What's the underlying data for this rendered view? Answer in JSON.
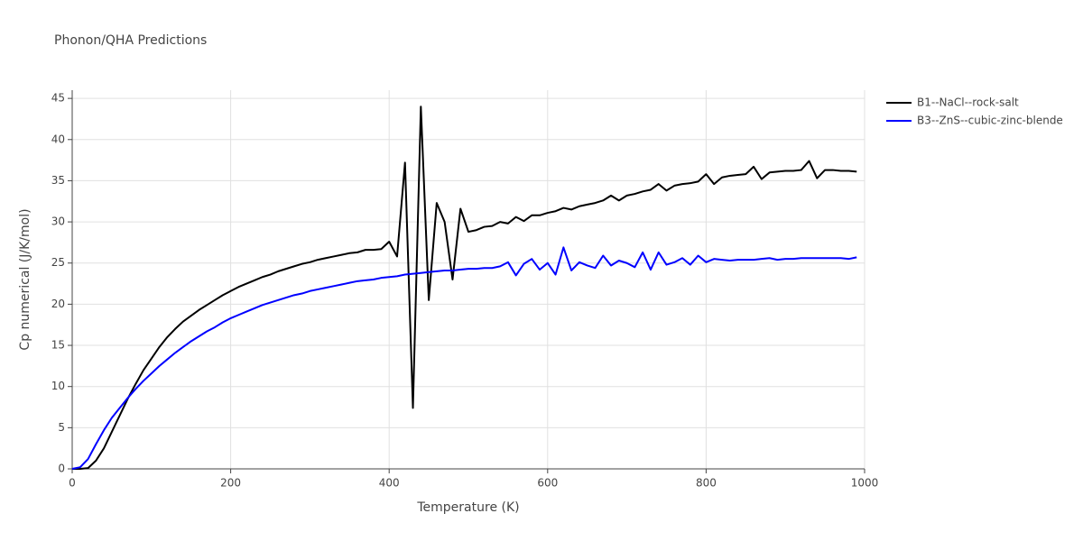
{
  "chart_data": {
    "type": "line",
    "title": "Phonon/QHA Predictions",
    "x_label": "Temperature (K)",
    "y_label": "Cp numerical (J/K/mol)",
    "x": [
      0,
      10,
      20,
      30,
      40,
      50,
      60,
      70,
      80,
      90,
      100,
      110,
      120,
      130,
      140,
      150,
      160,
      170,
      180,
      190,
      200,
      210,
      220,
      230,
      240,
      250,
      260,
      270,
      280,
      290,
      300,
      310,
      320,
      330,
      340,
      350,
      360,
      370,
      380,
      390,
      400,
      410,
      420,
      430,
      440,
      450,
      460,
      470,
      480,
      490,
      500,
      510,
      520,
      530,
      540,
      550,
      560,
      570,
      580,
      590,
      600,
      610,
      620,
      630,
      640,
      650,
      660,
      670,
      680,
      690,
      700,
      710,
      720,
      730,
      740,
      750,
      760,
      770,
      780,
      790,
      800,
      810,
      820,
      830,
      840,
      850,
      860,
      870,
      880,
      890,
      900,
      910,
      920,
      930,
      940,
      950,
      960,
      970,
      980,
      990
    ],
    "series": [
      {
        "name": "B1--NaCl--rock-salt",
        "color": "#000000",
        "values": [
          0,
          0,
          0.1,
          1,
          2.5,
          4.5,
          6.5,
          8.5,
          10.3,
          12,
          13.4,
          14.8,
          16,
          17,
          17.9,
          18.6,
          19.3,
          19.9,
          20.5,
          21.1,
          21.6,
          22.1,
          22.5,
          22.9,
          23.3,
          23.6,
          24,
          24.3,
          24.6,
          24.9,
          25.1,
          25.4,
          25.6,
          25.8,
          26,
          26.2,
          26.3,
          26.6,
          26.6,
          26.7,
          27.6,
          25.8,
          37.2,
          7.4,
          44,
          20.5,
          32.3,
          30,
          23,
          31.6,
          28.8,
          29,
          29.4,
          29.5,
          30,
          29.8,
          30.6,
          30.1,
          30.8,
          30.8,
          31.1,
          31.3,
          31.7,
          31.5,
          31.9,
          32.1,
          32.3,
          32.6,
          33.2,
          32.6,
          33.2,
          33.4,
          33.7,
          33.9,
          34.6,
          33.8,
          34.4,
          34.6,
          34.7,
          34.9,
          35.8,
          34.6,
          35.4,
          35.6,
          35.7,
          35.8,
          36.7,
          35.2,
          36,
          36.1,
          36.2,
          36.2,
          36.3,
          37.4,
          35.3,
          36.3,
          36.3,
          36.2,
          36.2,
          36.1
        ]
      },
      {
        "name": "B3--ZnS--cubic-zinc-blende",
        "color": "#0000ff",
        "values": [
          0,
          0.2,
          1.2,
          3,
          4.7,
          6.2,
          7.4,
          8.6,
          9.7,
          10.7,
          11.6,
          12.5,
          13.3,
          14.1,
          14.8,
          15.5,
          16.1,
          16.7,
          17.2,
          17.8,
          18.3,
          18.7,
          19.1,
          19.5,
          19.9,
          20.2,
          20.5,
          20.8,
          21.1,
          21.3,
          21.6,
          21.8,
          22,
          22.2,
          22.4,
          22.6,
          22.8,
          22.9,
          23,
          23.2,
          23.3,
          23.4,
          23.6,
          23.7,
          23.8,
          23.9,
          24,
          24.1,
          24.1,
          24.2,
          24.3,
          24.3,
          24.4,
          24.4,
          24.6,
          25.1,
          23.5,
          24.9,
          25.5,
          24.2,
          25,
          23.6,
          26.9,
          24.1,
          25.1,
          24.7,
          24.4,
          25.9,
          24.7,
          25.3,
          25,
          24.5,
          26.3,
          24.2,
          26.3,
          24.8,
          25.1,
          25.6,
          24.8,
          25.9,
          25.1,
          25.5,
          25.4,
          25.3,
          25.4,
          25.4,
          25.4,
          25.5,
          25.6,
          25.4,
          25.5,
          25.5,
          25.6,
          25.6,
          25.6,
          25.6,
          25.6,
          25.6,
          25.5,
          25.7
        ]
      }
    ],
    "xlim": [
      0,
      1000
    ],
    "xticks": [
      0,
      200,
      400,
      600,
      800,
      1000
    ],
    "ylim": [
      0,
      46
    ],
    "yticks": [
      0,
      5,
      10,
      15,
      20,
      25,
      30,
      35,
      40,
      45
    ],
    "grid": true,
    "legend": "outside-right"
  }
}
